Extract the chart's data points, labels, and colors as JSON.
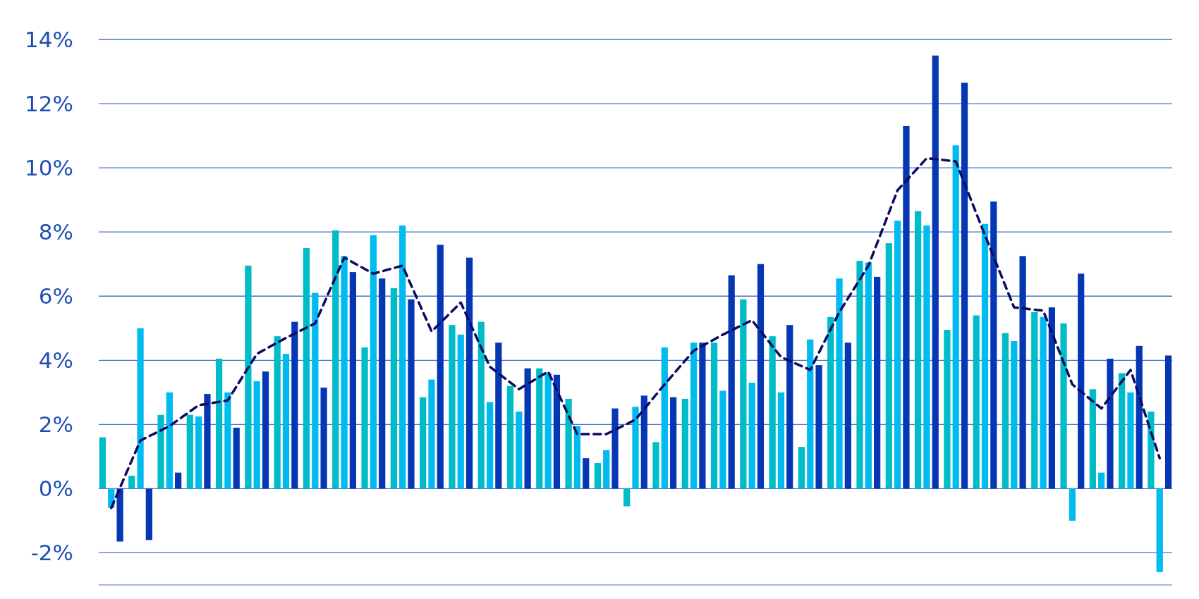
{
  "chart_data": {
    "type": "bar",
    "categories": [
      null,
      null,
      null,
      null,
      null,
      null,
      null,
      null,
      null,
      null,
      null,
      null,
      null,
      null,
      null,
      null,
      null,
      null,
      null,
      null,
      null,
      null,
      null,
      null,
      null,
      null,
      null,
      null,
      null,
      null,
      null,
      null,
      null,
      null,
      null,
      null,
      null
    ],
    "series": [
      {
        "color": "#00bcc8",
        "values": [
          1.6,
          0.4,
          2.3,
          2.3,
          4.05,
          6.95,
          4.75,
          7.5,
          8.05,
          4.4,
          6.25,
          2.85,
          5.1,
          5.2,
          3.2,
          3.75,
          2.8,
          0.8,
          -0.55,
          1.45,
          2.8,
          4.55,
          5.9,
          4.75,
          1.3,
          5.35,
          7.1,
          7.65,
          8.65,
          4.95,
          5.4,
          4.85,
          5.5,
          5.15,
          3.1,
          3.6,
          2.4
        ]
      },
      {
        "color": "#00bbf0",
        "values": [
          -0.6,
          5.0,
          3.0,
          2.25,
          3.0,
          3.35,
          4.2,
          6.1,
          7.25,
          7.9,
          8.2,
          3.4,
          4.8,
          2.7,
          2.4,
          3.6,
          1.95,
          1.2,
          2.55,
          4.4,
          4.55,
          3.05,
          3.3,
          3.0,
          4.65,
          6.55,
          7.05,
          8.35,
          8.2,
          10.7,
          8.25,
          4.6,
          5.35,
          -1.0,
          0.5,
          3.0,
          -2.6
        ]
      },
      {
        "color": "#0537b4",
        "values": [
          -1.65,
          -1.6,
          0.5,
          2.95,
          1.9,
          3.65,
          5.2,
          3.15,
          6.75,
          6.55,
          5.9,
          7.6,
          7.2,
          4.55,
          3.75,
          3.55,
          0.95,
          2.5,
          2.9,
          2.85,
          4.55,
          6.65,
          7.0,
          5.1,
          3.85,
          4.55,
          6.6,
          11.3,
          13.5,
          12.65,
          8.95,
          7.25,
          5.65,
          6.7,
          4.05,
          4.45,
          4.15
        ]
      },
      {
        "type": "line",
        "color": "#0b0b62",
        "line_style": "dashed",
        "marker": "none",
        "values": [
          -0.6,
          1.5,
          1.95,
          2.6,
          2.75,
          4.2,
          4.7,
          5.15,
          7.2,
          6.7,
          6.95,
          4.9,
          5.8,
          3.8,
          3.1,
          3.65,
          1.7,
          1.7,
          2.15,
          3.25,
          4.3,
          4.8,
          5.25,
          4.1,
          3.7,
          5.5,
          6.95,
          9.3,
          10.3,
          10.2,
          7.9,
          5.65,
          5.55,
          3.25,
          2.5,
          3.7,
          0.95
        ]
      }
    ],
    "ylim": [
      -3,
      14
    ],
    "yticks": [
      {
        "value": -2,
        "label": "-2%"
      },
      {
        "value": 0,
        "label": "0%"
      },
      {
        "value": 2,
        "label": "2%"
      },
      {
        "value": 4,
        "label": "4%"
      },
      {
        "value": 6,
        "label": "6%"
      },
      {
        "value": 8,
        "label": "8%"
      },
      {
        "value": 10,
        "label": "10%"
      },
      {
        "value": 12,
        "label": "12%"
      },
      {
        "value": 14,
        "label": "14%"
      }
    ],
    "grid": "y"
  }
}
